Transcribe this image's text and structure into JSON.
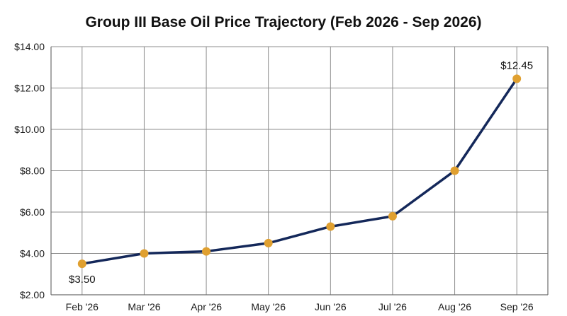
{
  "chart_data": {
    "type": "line",
    "title": "Group III Base Oil Price Trajectory (Feb 2026 - Sep 2026)",
    "categories": [
      "Feb '26",
      "Mar '26",
      "Apr '26",
      "May '26",
      "Jun '26",
      "Jul '26",
      "Aug '26",
      "Sep '26"
    ],
    "series": [
      {
        "values": [
          3.5,
          4.0,
          4.1,
          4.5,
          5.3,
          5.8,
          8.0,
          12.45
        ]
      }
    ],
    "ylim": [
      2,
      14
    ],
    "yticks": [
      2,
      4,
      6,
      8,
      10,
      12,
      14
    ],
    "ytick_labels": [
      "$2.00",
      "$4.00",
      "$6.00",
      "$8.00",
      "$10.00",
      "$12.00",
      "$14.00"
    ],
    "data_labels": [
      {
        "index": 0,
        "text": "$3.50",
        "position": "below"
      },
      {
        "index": 7,
        "text": "$12.45",
        "position": "above"
      }
    ],
    "grid": true,
    "xlabel": "",
    "ylabel": "",
    "colors": {
      "line": "#14285a",
      "marker": "#e0a030",
      "grid": "#8c8c8c"
    }
  }
}
